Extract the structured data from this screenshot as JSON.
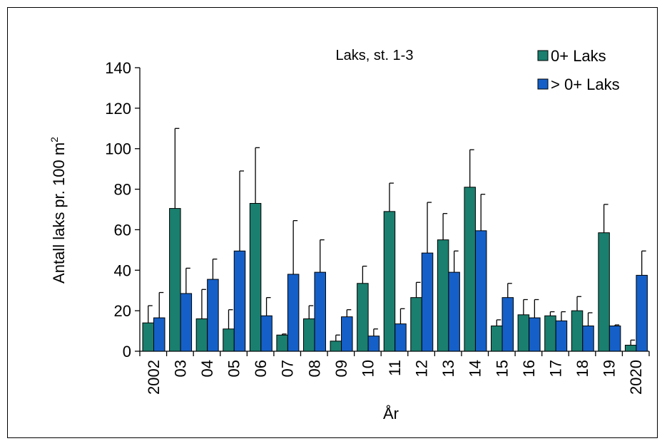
{
  "chart_data": {
    "type": "bar",
    "title": "Laks, st. 1-3",
    "xlabel": "År",
    "ylabel": "Antall laks pr. 100 m",
    "ylabel_sup": "2",
    "ylim": [
      0,
      140
    ],
    "yticks": [
      0,
      20,
      40,
      60,
      80,
      100,
      120,
      140
    ],
    "grid": false,
    "legend_position": "top-right",
    "categories": [
      "2002",
      "03",
      "04",
      "05",
      "06",
      "07",
      "08",
      "09",
      "10",
      "11",
      "12",
      "13",
      "14",
      "15",
      "16",
      "17",
      "18",
      "19",
      "2020"
    ],
    "series": [
      {
        "name": "0+ Laks",
        "color": "#1a7f6e",
        "values": [
          14,
          70.5,
          16,
          11,
          73,
          8,
          16,
          5,
          33.5,
          69,
          26.5,
          55,
          81,
          12.5,
          18,
          17.5,
          20,
          58.5,
          3
        ],
        "error": [
          8.5,
          39.5,
          14.5,
          9.5,
          27.5,
          0.5,
          6.5,
          3,
          8.5,
          14,
          7.5,
          13,
          18.5,
          3,
          7.5,
          2,
          7,
          14,
          2.5
        ]
      },
      {
        "name": "> 0+ Laks",
        "color": "#1560c8",
        "values": [
          16.5,
          28.5,
          35.5,
          49.5,
          17.5,
          38,
          39,
          17,
          7.5,
          13.5,
          48.5,
          39,
          59.5,
          26.5,
          16.5,
          15,
          12.5,
          12.5,
          37.5
        ],
        "error": [
          12.5,
          12.5,
          10,
          39.5,
          9,
          26.5,
          16,
          3.5,
          3.5,
          7.5,
          25,
          10.5,
          18,
          7,
          9,
          4.5,
          6.5,
          0.5,
          12
        ]
      }
    ]
  }
}
